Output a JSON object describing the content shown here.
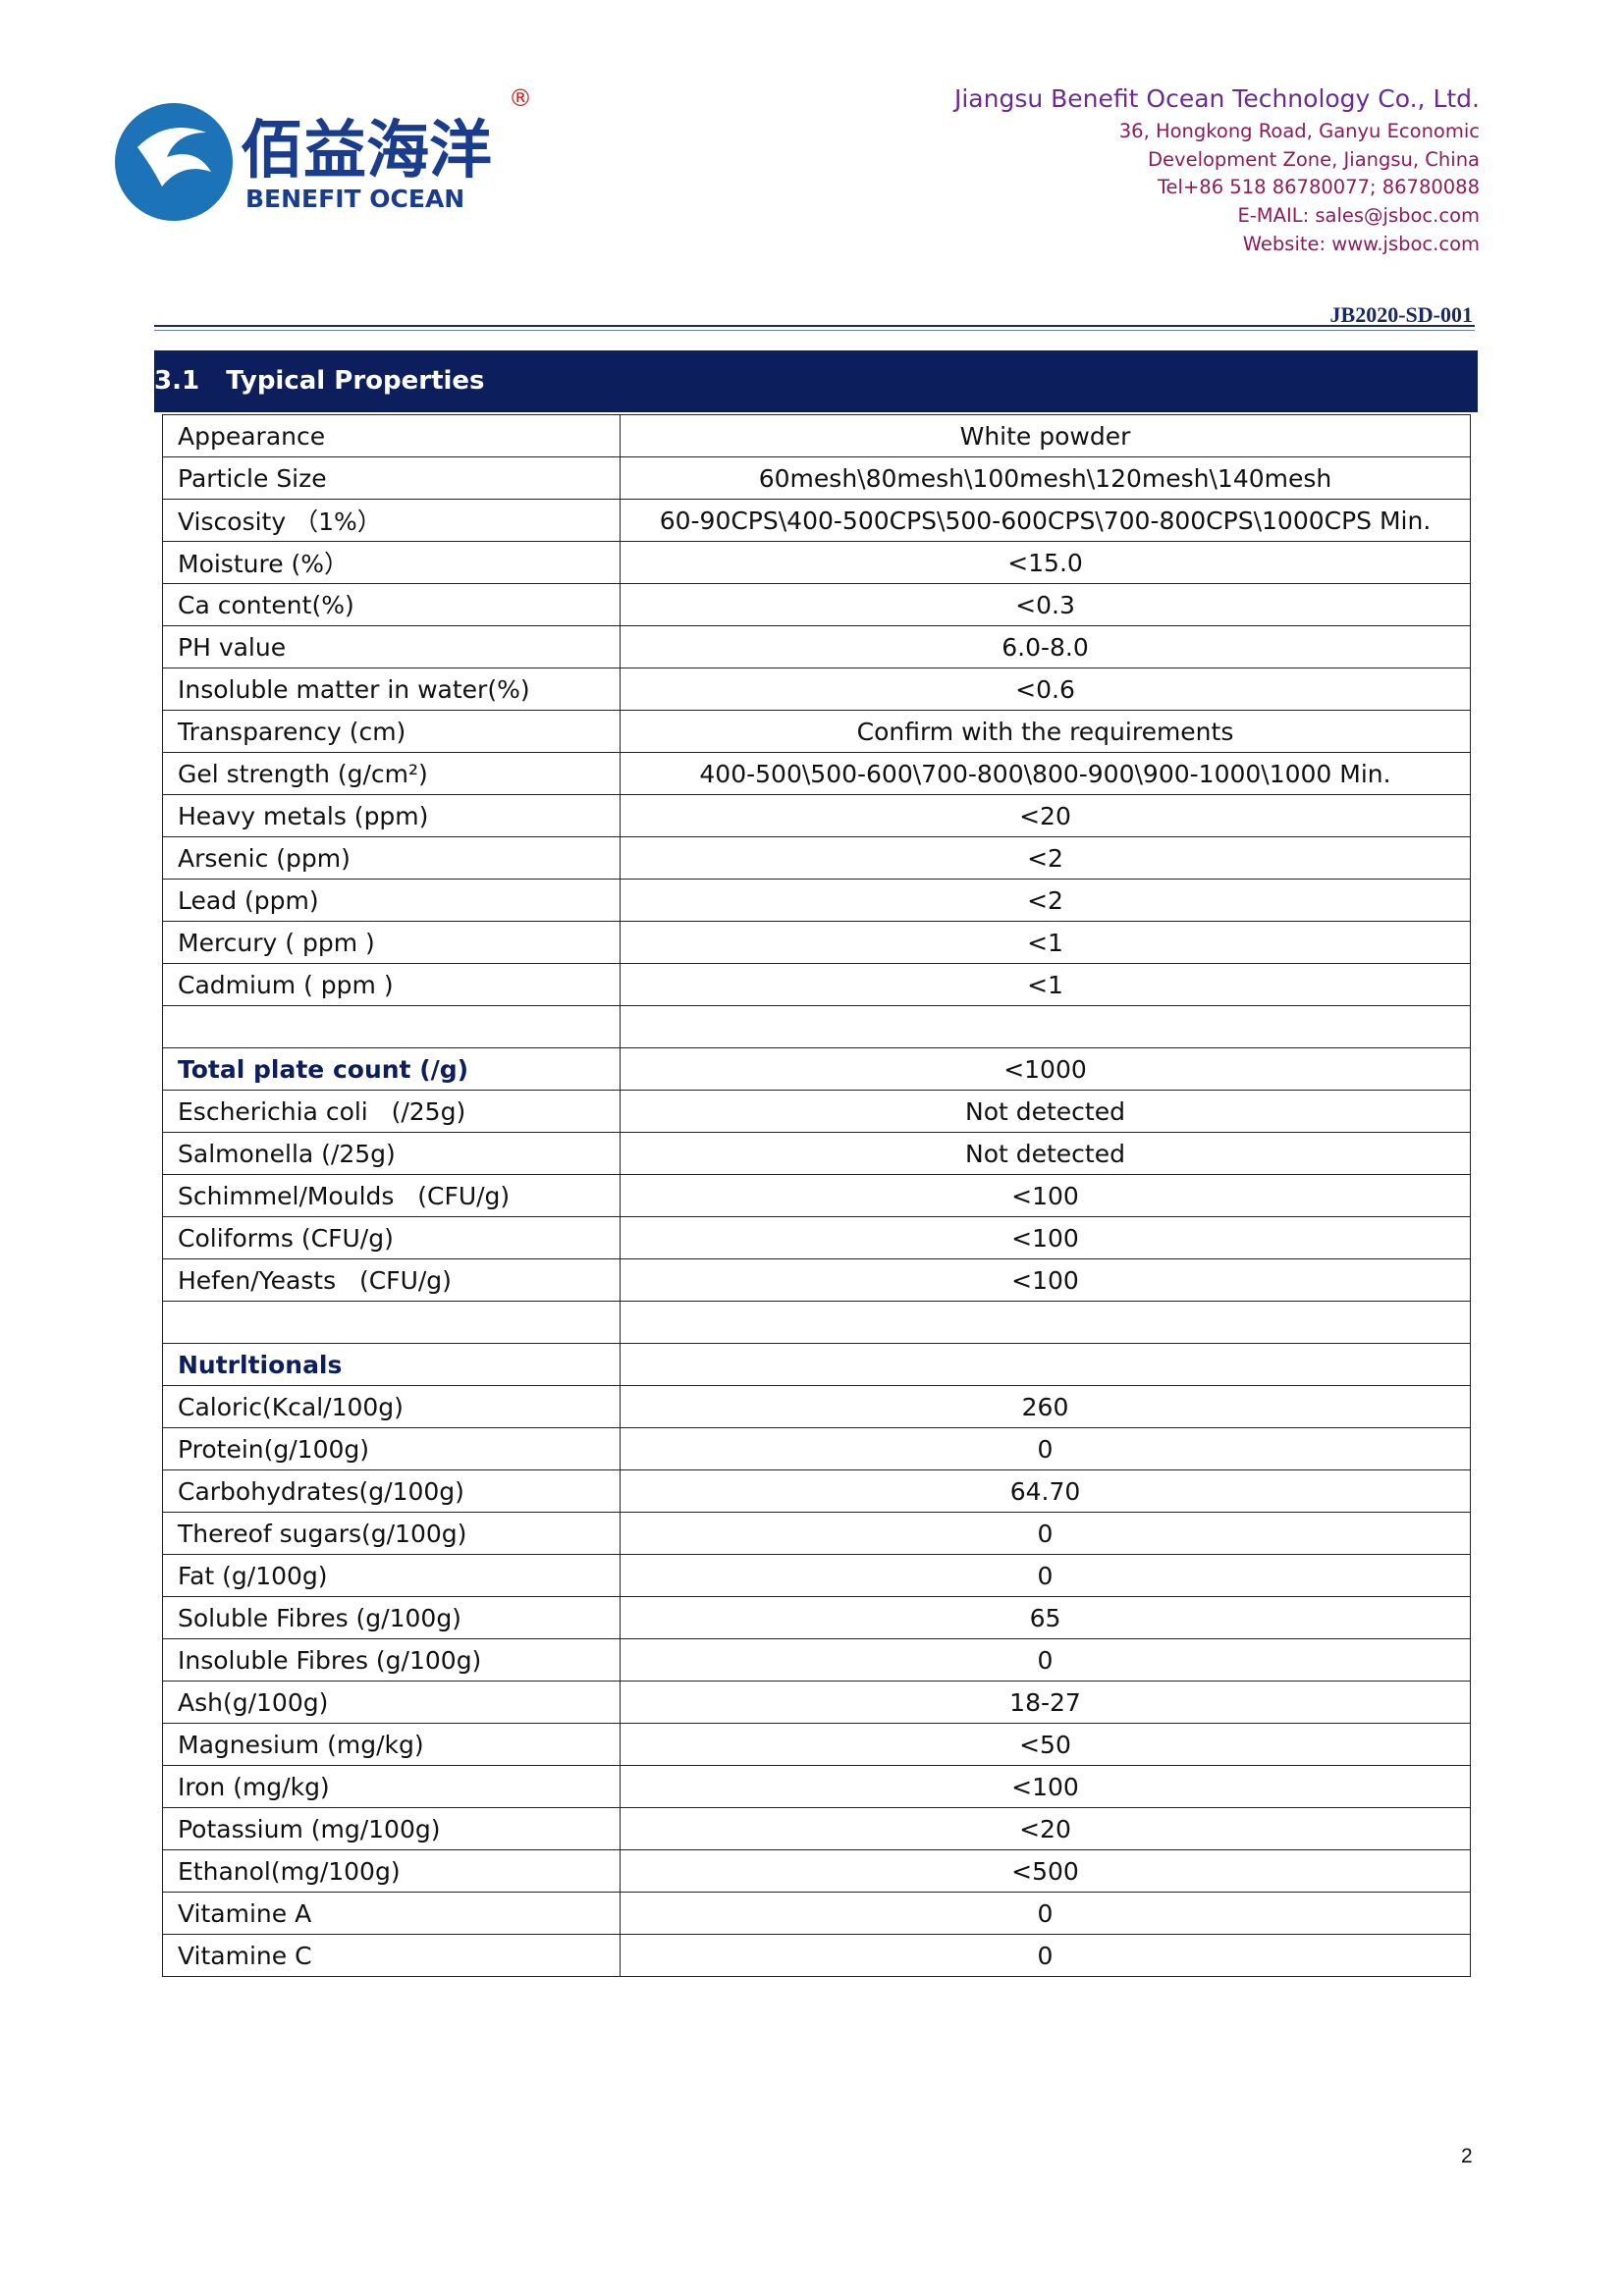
{
  "header": {
    "logo_mark": "®",
    "logo_cn": "佰益海洋",
    "logo_en": "BENEFIT OCEAN",
    "company": "Jiangsu Benefit Ocean Technology Co., Ltd.",
    "address_lines": [
      "36, Hongkong Road, Ganyu Economic",
      "Development Zone, Jiangsu, China",
      "Tel+86 518 86780077; 86780088",
      "E-MAIL: sales@jsboc.com",
      "Website: www.jsboc.com"
    ],
    "doc_code": "JB2020-SD-001"
  },
  "section": {
    "number": "3.1",
    "title": "Typical Properties"
  },
  "table": {
    "rows": [
      {
        "label": "Appearance",
        "value": "White powder"
      },
      {
        "label": "Particle Size",
        "value": "60mesh\\80mesh\\100mesh\\120mesh\\140mesh"
      },
      {
        "label": "Viscosity （1%）",
        "value": "60-90CPS\\400-500CPS\\500-600CPS\\700-800CPS\\1000CPS Min."
      },
      {
        "label": "Moisture (%）",
        "value": "<15.0"
      },
      {
        "label": "Ca content(%)",
        "value": "<0.3"
      },
      {
        "label": "PH value",
        "value": "6.0-8.0"
      },
      {
        "label": "Insoluble matter in water(%)",
        "value": "<0.6"
      },
      {
        "label": "Transparency (cm)",
        "value": "Confirm with the requirements"
      },
      {
        "label": "Gel strength (g/cm²)",
        "value": "400-500\\500-600\\700-800\\800-900\\900-1000\\1000 Min."
      },
      {
        "label": "Heavy metals (ppm)",
        "value": "<20"
      },
      {
        "label": "Arsenic (ppm)",
        "value": "<2"
      },
      {
        "label": "Lead (ppm)",
        "value": "<2"
      },
      {
        "label": "Mercury ( ppm )",
        "value": "<1"
      },
      {
        "label": "Cadmium ( ppm )",
        "value": "<1"
      },
      null,
      {
        "label": "Total plate count (/g)",
        "value": "<1000",
        "bold": true
      },
      {
        "label": "Escherichia coli   (/25g)",
        "value": "Not detected"
      },
      {
        "label": "Salmonella (/25g)",
        "value": "Not detected"
      },
      {
        "label": "Schimmel/Moulds   (CFU/g)",
        "value": "<100"
      },
      {
        "label": "Coliforms (CFU/g)",
        "value": "<100"
      },
      {
        "label": "Hefen/Yeasts   (CFU/g)",
        "value": "<100"
      },
      null,
      {
        "label": "Nutrltionals",
        "bold": true
      },
      {
        "label": "Caloric(Kcal/100g)",
        "value": "260"
      },
      {
        "label": "Protein(g/100g)",
        "value": "0"
      },
      {
        "label": "Carbohydrates(g/100g)",
        "value": "64.70"
      },
      {
        "label": "Thereof sugars(g/100g)",
        "value": "0"
      },
      {
        "label": "Fat (g/100g)",
        "value": "0"
      },
      {
        "label": "Soluble Fibres (g/100g)",
        "value": "65"
      },
      {
        "label": "Insoluble Fibres (g/100g)",
        "value": "0"
      },
      {
        "label": "Ash(g/100g)",
        "value": "18-27"
      },
      {
        "label": "Magnesium (mg/kg)",
        "value": "<50"
      },
      {
        "label": "Iron (mg/kg)",
        "value": "<100"
      },
      {
        "label": "Potassium (mg/100g)",
        "value": "<20"
      },
      {
        "label": "Ethanol(mg/100g)",
        "value": "<500"
      },
      {
        "label": "Vitamine A",
        "value": "0"
      },
      {
        "label": "Vitamine C",
        "value": "0"
      }
    ]
  },
  "page_number": "2"
}
